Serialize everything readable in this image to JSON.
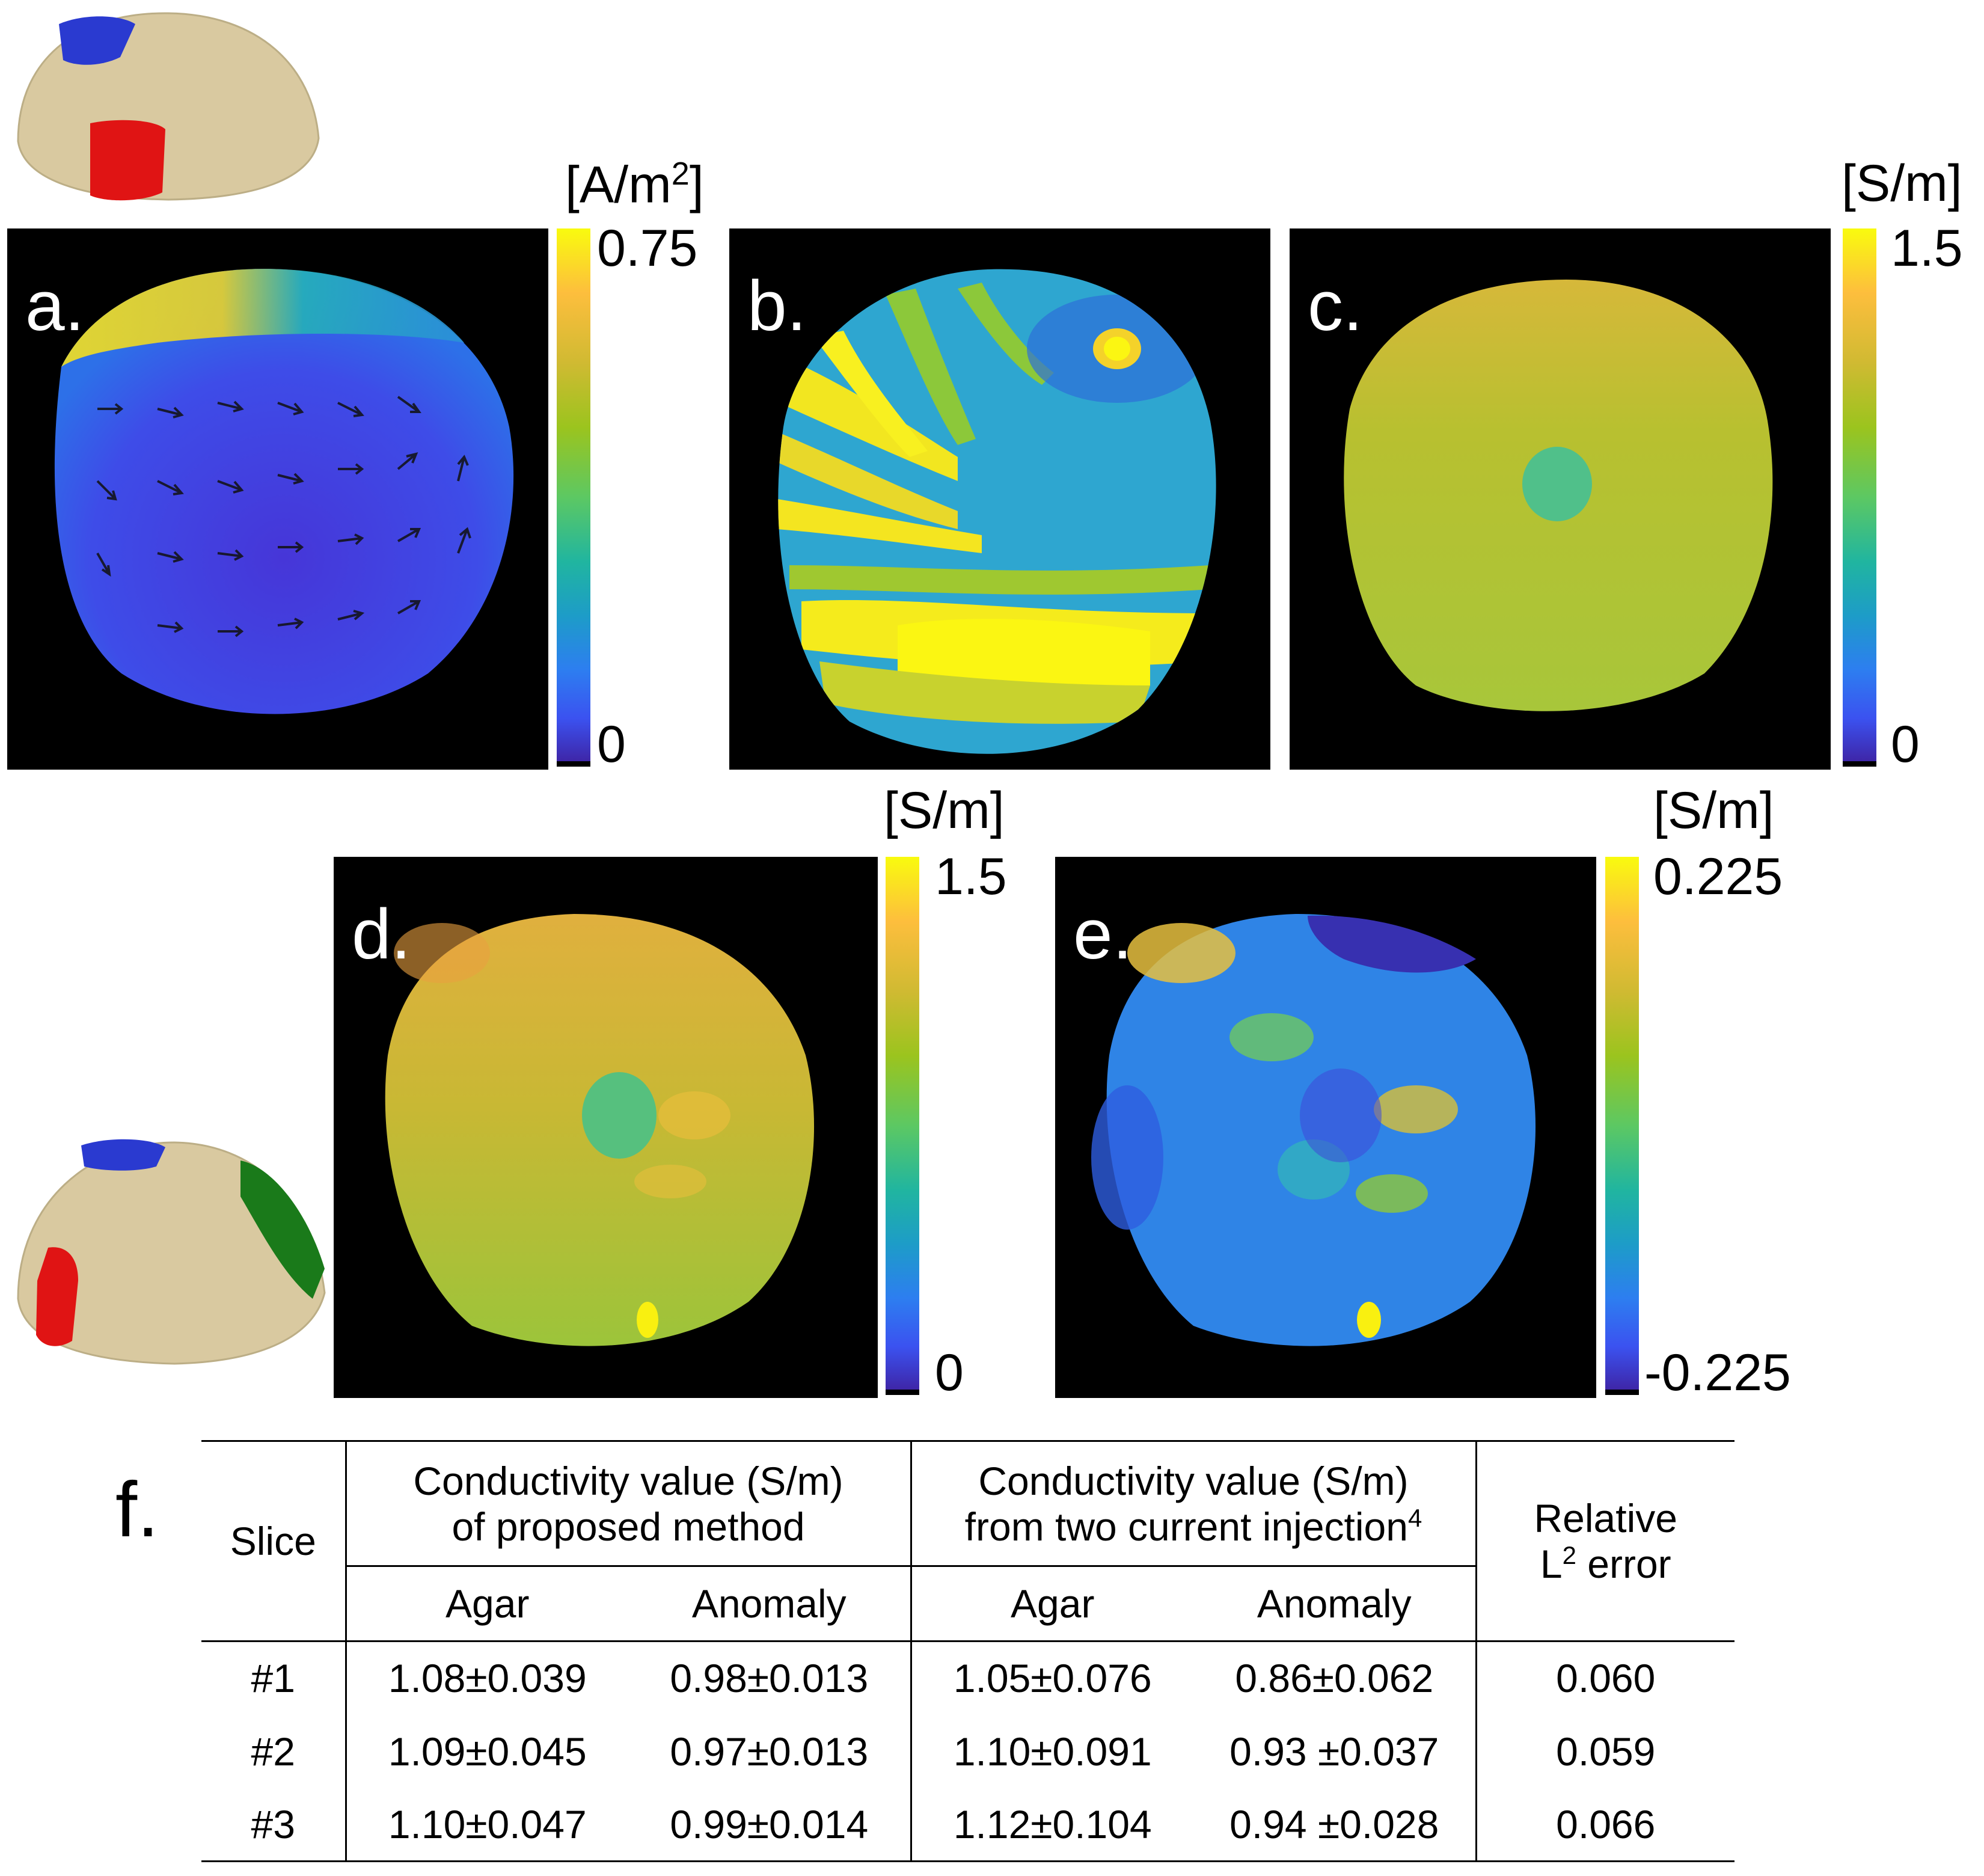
{
  "panels": {
    "a": {
      "label": "a."
    },
    "b": {
      "label": "b."
    },
    "c": {
      "label": "c."
    },
    "d": {
      "label": "d."
    },
    "e": {
      "label": "e."
    },
    "f": {
      "label": "f."
    }
  },
  "colorbars": {
    "a": {
      "unit_main": "[A/m",
      "unit_sup": "2",
      "unit_end": "]",
      "max": "0.75",
      "min": "0"
    },
    "c": {
      "unit": "[S/m]",
      "max": "1.5",
      "min": "0"
    },
    "d": {
      "unit": "[S/m]",
      "max": "1.5",
      "min": "0"
    },
    "e": {
      "unit": "[S/m]",
      "max": "0.225",
      "min": "-0.225"
    }
  },
  "colors": {
    "background": "#000000",
    "yellow": "#f9fb0e",
    "blue": "#3e26a8",
    "phantom": "#d9c9a0",
    "electrode_red": "#e01010",
    "electrode_blue": "#2030c0",
    "electrode_green": "#1a7a1a"
  },
  "table": {
    "col_slice": "Slice",
    "group1_line1": "Conductivity value (S/m)",
    "group1_line2": "of proposed method",
    "group2_line1": "Conductivity value (S/m)",
    "group2_line2": "from two current injection",
    "group2_ref": "4",
    "col_error_line1": "Relative",
    "col_error_L": "L",
    "col_error_sup": "2",
    "col_error_rest": " error",
    "sub_agar": "Agar",
    "sub_anomaly": "Anomaly",
    "rows": [
      {
        "slice": "#1",
        "p_agar": "1.08±0.039",
        "p_anom": "0.98±0.013",
        "t_agar": "1.05±0.076",
        "t_anom": "0.86±0.062",
        "err": "0.060"
      },
      {
        "slice": "#2",
        "p_agar": "1.09±0.045",
        "p_anom": "0.97±0.013",
        "t_agar": "1.10±0.091",
        "t_anom": "0.93 ±0.037",
        "err": "0.059"
      },
      {
        "slice": "#3",
        "p_agar": "1.10±0.047",
        "p_anom": "0.99±0.014",
        "t_agar": "1.12±0.104",
        "t_anom": "0.94 ±0.028",
        "err": "0.066"
      }
    ]
  }
}
